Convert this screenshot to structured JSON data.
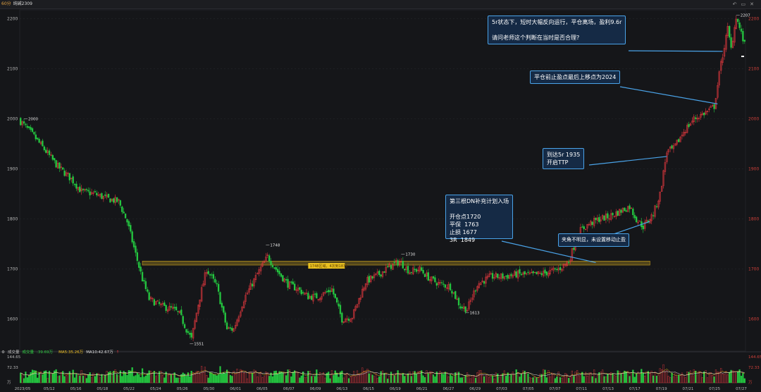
{
  "window": {
    "title": "纯碱2309",
    "period": "60分",
    "controls": [
      "↶",
      "▭",
      "✕",
      "▢",
      "⚙"
    ]
  },
  "annotations": {
    "note1": "5r状态下，短时大幅反向运行，平仓离场，盈利9.6r\n\n请问老师这个判断在当时是否合理?",
    "note2": "平仓前止盈点最后上移点为2024",
    "note3": "到达5r 1935\n开启TTP",
    "note4": "第三根DN补充计划入场\n\n开仓点1720\n平保  1763\n止损 1677\n3R  1849",
    "note5": "夹角不明显，未设置移动止盈",
    "zone_label": "1748区域，4次到1831"
  },
  "volume_panel": {
    "title": "成交量",
    "vol_label": "成交量",
    "vol_value": "39.69万",
    "ma5_label": "MA5:35.26万",
    "ma10_label": "MA10:42.67万",
    "arrow": "↑"
  },
  "chart_data": {
    "type": "candlestick",
    "instrument": "纯碱2309",
    "timeframe": "60分",
    "price_axis": {
      "ticks": [
        1600,
        1700,
        1800,
        1900,
        2000,
        2100,
        2200
      ],
      "range": [
        1539,
        2215
      ]
    },
    "volume_axis": {
      "ticks": [
        "144.65",
        "72.33",
        "万"
      ]
    },
    "x_ticks": [
      "2023/05",
      "05/12",
      "05/16",
      "05/18",
      "05/22",
      "05/24",
      "05/26",
      "05/30",
      "06/01",
      "06/05",
      "06/07",
      "06/09",
      "06/13",
      "06/15",
      "06/19",
      "06/21",
      "06/27",
      "06/29",
      "07/03",
      "07/05",
      "07/07",
      "07/11",
      "07/13",
      "07/17",
      "07/19",
      "07/21",
      "07/25",
      "07/27"
    ],
    "price_labels": [
      {
        "label": "2000",
        "value": 2000,
        "bar": 2
      },
      {
        "label": "1551",
        "value": 1551,
        "bar": 100
      },
      {
        "label": "1748",
        "value": 1748,
        "bar": 145
      },
      {
        "label": "1730",
        "value": 1730,
        "bar": 225
      },
      {
        "label": "1613",
        "value": 1613,
        "bar": 263
      },
      {
        "label": "2207",
        "value": 2207,
        "bar": 423
      }
    ],
    "resistance_zone": {
      "top": 1716,
      "bottom": 1708
    },
    "path": [
      [
        0,
        1995
      ],
      [
        8,
        1965
      ],
      [
        15,
        1935
      ],
      [
        22,
        1905
      ],
      [
        30,
        1880
      ],
      [
        36,
        1855
      ],
      [
        44,
        1850
      ],
      [
        52,
        1840
      ],
      [
        58,
        1835
      ],
      [
        63,
        1795
      ],
      [
        68,
        1730
      ],
      [
        72,
        1680
      ],
      [
        76,
        1640
      ],
      [
        84,
        1625
      ],
      [
        90,
        1620
      ],
      [
        94,
        1610
      ],
      [
        98,
        1580
      ],
      [
        101,
        1560
      ],
      [
        105,
        1630
      ],
      [
        110,
        1700
      ],
      [
        116,
        1665
      ],
      [
        122,
        1580
      ],
      [
        126,
        1580
      ],
      [
        132,
        1640
      ],
      [
        140,
        1690
      ],
      [
        146,
        1725
      ],
      [
        152,
        1695
      ],
      [
        158,
        1670
      ],
      [
        164,
        1660
      ],
      [
        170,
        1645
      ],
      [
        176,
        1645
      ],
      [
        184,
        1660
      ],
      [
        190,
        1600
      ],
      [
        196,
        1605
      ],
      [
        204,
        1675
      ],
      [
        212,
        1690
      ],
      [
        218,
        1705
      ],
      [
        224,
        1715
      ],
      [
        230,
        1695
      ],
      [
        236,
        1700
      ],
      [
        242,
        1680
      ],
      [
        248,
        1670
      ],
      [
        254,
        1665
      ],
      [
        260,
        1625
      ],
      [
        264,
        1620
      ],
      [
        270,
        1670
      ],
      [
        278,
        1685
      ],
      [
        286,
        1685
      ],
      [
        294,
        1690
      ],
      [
        302,
        1688
      ],
      [
        310,
        1692
      ],
      [
        318,
        1700
      ],
      [
        324,
        1715
      ],
      [
        330,
        1775
      ],
      [
        336,
        1790
      ],
      [
        342,
        1800
      ],
      [
        348,
        1805
      ],
      [
        354,
        1815
      ],
      [
        360,
        1825
      ],
      [
        364,
        1800
      ],
      [
        368,
        1785
      ],
      [
        374,
        1810
      ],
      [
        378,
        1850
      ],
      [
        382,
        1935
      ],
      [
        386,
        1940
      ],
      [
        392,
        1975
      ],
      [
        398,
        2000
      ],
      [
        406,
        2015
      ],
      [
        410,
        2025
      ],
      [
        414,
        2110
      ],
      [
        418,
        2180
      ],
      [
        420,
        2140
      ],
      [
        423,
        2205
      ],
      [
        426,
        2170
      ],
      [
        428,
        2148
      ]
    ],
    "n_bars": 429
  },
  "colors": {
    "up": "#e0383e",
    "down": "#24c740",
    "grid": "#2a2b30",
    "axis_text_left": "#b8b8b8",
    "axis_text_right": "#d0403a",
    "zone": "#c8a020",
    "ma5": "#f0c020",
    "ma10": "#e8e8e8",
    "note_border": "#4aa3e8",
    "note_bg": "#152a45"
  }
}
